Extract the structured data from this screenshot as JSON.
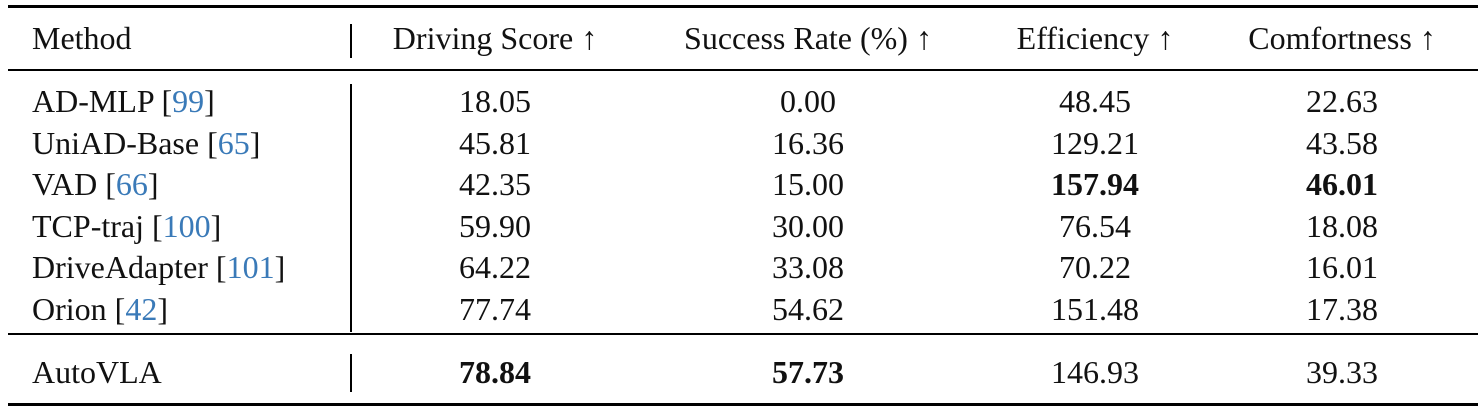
{
  "table": {
    "header": [
      "Method",
      "Driving Score ↑",
      "Success Rate (%) ↑",
      "Efficiency ↑",
      "Comfortness ↑"
    ],
    "rows": [
      {
        "method": [
          "AD-MLP [",
          "99",
          "]"
        ],
        "values": [
          "18.05",
          "0.00",
          "48.45",
          "22.63"
        ],
        "bold": [
          false,
          false,
          false,
          false
        ]
      },
      {
        "method": [
          "UniAD-Base [",
          "65",
          "]"
        ],
        "values": [
          "45.81",
          "16.36",
          "129.21",
          "43.58"
        ],
        "bold": [
          false,
          false,
          false,
          false
        ]
      },
      {
        "method": [
          "VAD [",
          "66",
          "]"
        ],
        "values": [
          "42.35",
          "15.00",
          "157.94",
          "46.01"
        ],
        "bold": [
          false,
          false,
          true,
          true
        ]
      },
      {
        "method": [
          "TCP-traj [",
          "100",
          "]"
        ],
        "values": [
          "59.90",
          "30.00",
          "76.54",
          "18.08"
        ],
        "bold": [
          false,
          false,
          false,
          false
        ]
      },
      {
        "method": [
          "DriveAdapter [",
          "101",
          "]"
        ],
        "values": [
          "64.22",
          "33.08",
          "70.22",
          "16.01"
        ],
        "bold": [
          false,
          false,
          false,
          false
        ]
      },
      {
        "method": [
          "Orion [",
          "42",
          "]"
        ],
        "values": [
          "77.74",
          "54.62",
          "151.48",
          "17.38"
        ],
        "bold": [
          false,
          false,
          false,
          false
        ]
      }
    ],
    "final_row": {
      "method": [
        "AutoVLA"
      ],
      "values": [
        "78.84",
        "57.73",
        "146.93",
        "39.33"
      ],
      "bold": [
        true,
        true,
        false,
        false
      ]
    }
  }
}
